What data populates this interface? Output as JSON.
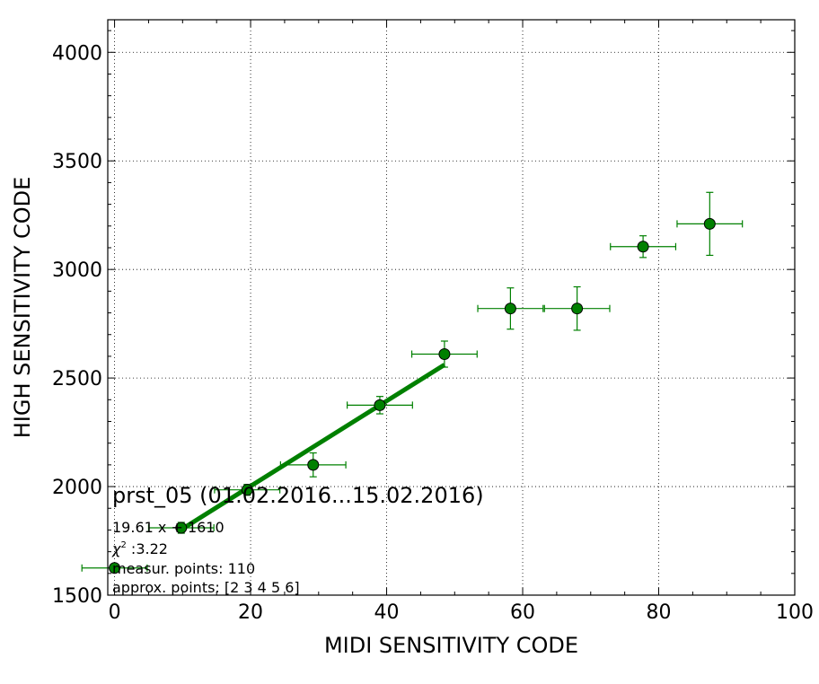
{
  "chart_data": {
    "type": "scatter",
    "xlabel": "MIDI SENSITIVITY CODE",
    "ylabel": "HIGH SENSITIVITY CODE",
    "xlim": [
      -1,
      100
    ],
    "ylim": [
      1500,
      4150
    ],
    "xticks": [
      0,
      20,
      40,
      60,
      80,
      100
    ],
    "yticks": [
      1500,
      2000,
      2500,
      3000,
      3500,
      4000
    ],
    "xticks_minor_step": 5,
    "yticks_minor_step": 100,
    "grid": true,
    "colors": {
      "series": "#008000",
      "marker_edge": "#000000"
    },
    "series": [
      {
        "x": [
          0,
          9.8,
          19.5,
          29.2,
          39,
          48.5,
          58.2,
          68,
          77.7,
          87.5
        ],
        "y": [
          1625,
          1810,
          1985,
          2100,
          2375,
          2610,
          2820,
          2820,
          3105,
          3210
        ],
        "xerr": [
          4.8,
          4.8,
          4.8,
          4.8,
          4.8,
          4.8,
          4.8,
          4.8,
          4.8,
          4.8
        ],
        "yerr": [
          15,
          25,
          25,
          55,
          40,
          60,
          95,
          100,
          50,
          145
        ]
      }
    ],
    "fit_line": {
      "x": [
        9.8,
        48.5
      ],
      "y": [
        1802,
        2561
      ]
    },
    "annotations": {
      "title": "prst_05 (01.02.2016...15.02.2016)",
      "equation": "19.61 x + 1610",
      "chi_symbol": "χ",
      "chi_exponent": "2",
      "chi_value": " :3.22",
      "measur_points": "measur. points: 110",
      "approx_points": "approx. points: [2 3 4 5 6]"
    }
  }
}
